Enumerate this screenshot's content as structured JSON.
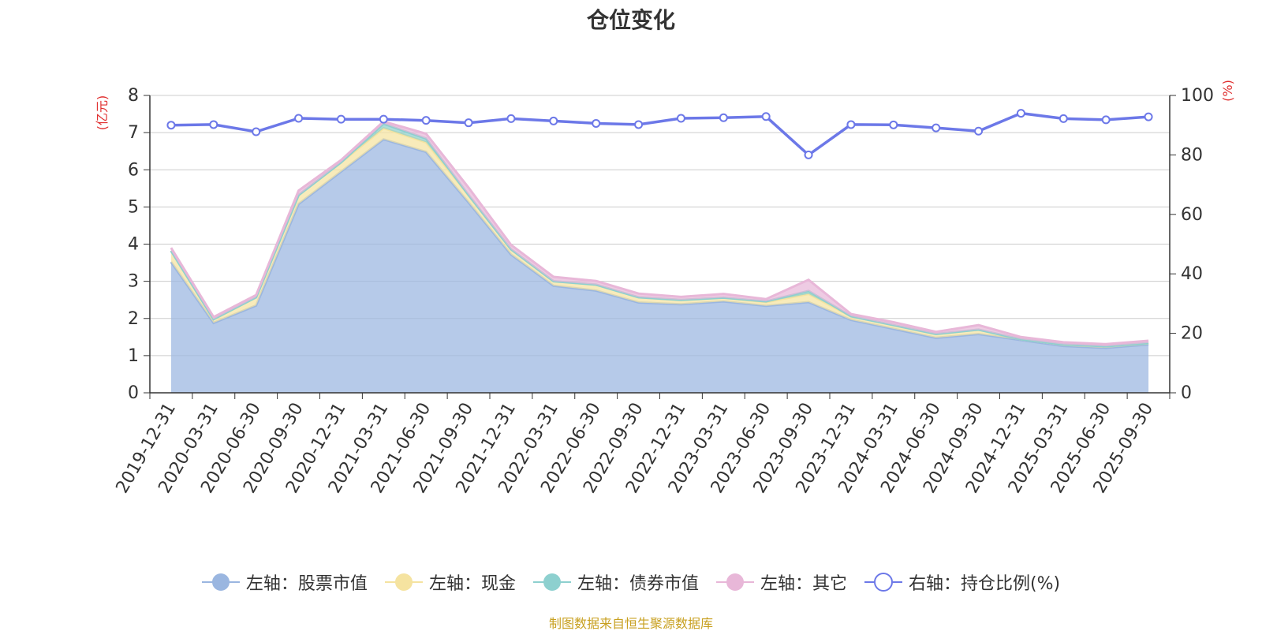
{
  "chart_data": {
    "type": "area",
    "title": "仓位变化",
    "x": [
      "2019-12-31",
      "2020-03-31",
      "2020-06-30",
      "2020-09-30",
      "2020-12-31",
      "2021-03-31",
      "2021-06-30",
      "2021-09-30",
      "2021-12-31",
      "2022-03-31",
      "2022-06-30",
      "2022-09-30",
      "2022-12-31",
      "2023-03-31",
      "2023-06-30",
      "2023-09-30",
      "2023-12-31",
      "2024-03-31",
      "2024-06-30",
      "2024-09-30",
      "2024-12-31",
      "2025-03-31",
      "2025-06-30",
      "2025-09-30"
    ],
    "left_axis": {
      "unit_label": "(亿元)",
      "ylim": [
        0,
        8
      ],
      "ticks": [
        "0",
        "1",
        "2",
        "3",
        "4",
        "5",
        "6",
        "7",
        "8"
      ]
    },
    "right_axis": {
      "unit_label": "(%)",
      "ylim": [
        0,
        100
      ],
      "ticks": [
        "0",
        "20",
        "40",
        "60",
        "80",
        "100"
      ]
    },
    "stacked": true,
    "series": [
      {
        "name": "左轴：股票市值",
        "axis": "left",
        "color": "#9ab6e0",
        "values": [
          3.52,
          1.88,
          2.35,
          5.08,
          5.95,
          6.82,
          6.48,
          5.12,
          3.72,
          2.88,
          2.75,
          2.43,
          2.38,
          2.46,
          2.34,
          2.44,
          1.96,
          1.72,
          1.48,
          1.58,
          1.42,
          1.26,
          1.21,
          1.3
        ]
      },
      {
        "name": "左轴：现金",
        "axis": "left",
        "color": "#f5e3a0",
        "values": [
          0.3,
          0.1,
          0.22,
          0.24,
          0.25,
          0.3,
          0.26,
          0.2,
          0.14,
          0.12,
          0.16,
          0.14,
          0.12,
          0.1,
          0.1,
          0.22,
          0.1,
          0.1,
          0.1,
          0.12,
          0.02,
          0.04,
          0.04,
          0.04
        ]
      },
      {
        "name": "左轴：债券市值",
        "axis": "left",
        "color": "#8dd0cf",
        "values": [
          0,
          0,
          0,
          0,
          0,
          0.12,
          0.1,
          0,
          0,
          0,
          0,
          0,
          0,
          0,
          0.02,
          0.08,
          0,
          0,
          0,
          0,
          0,
          0,
          0,
          0
        ]
      },
      {
        "name": "左轴：其它",
        "axis": "left",
        "color": "#e8b7d8",
        "values": [
          0.08,
          0.06,
          0.06,
          0.12,
          0.06,
          0.06,
          0.13,
          0.2,
          0.12,
          0.12,
          0.1,
          0.1,
          0.08,
          0.1,
          0.06,
          0.3,
          0.06,
          0.08,
          0.06,
          0.12,
          0.06,
          0.06,
          0.06,
          0.06
        ]
      },
      {
        "name": "右轴：持仓比例(%)",
        "axis": "right",
        "color": "#6c78e8",
        "type": "line",
        "values": [
          90,
          90.2,
          87.8,
          92.3,
          92,
          92,
          91.6,
          90.8,
          92.2,
          91.4,
          90.6,
          90.2,
          92.3,
          92.5,
          92.9,
          80,
          90.2,
          90.1,
          89.1,
          88,
          94,
          92.2,
          91.8,
          92.8
        ]
      }
    ],
    "grid": true,
    "legend_position": "bottom"
  },
  "source_note": "制图数据来自恒生聚源数据库"
}
